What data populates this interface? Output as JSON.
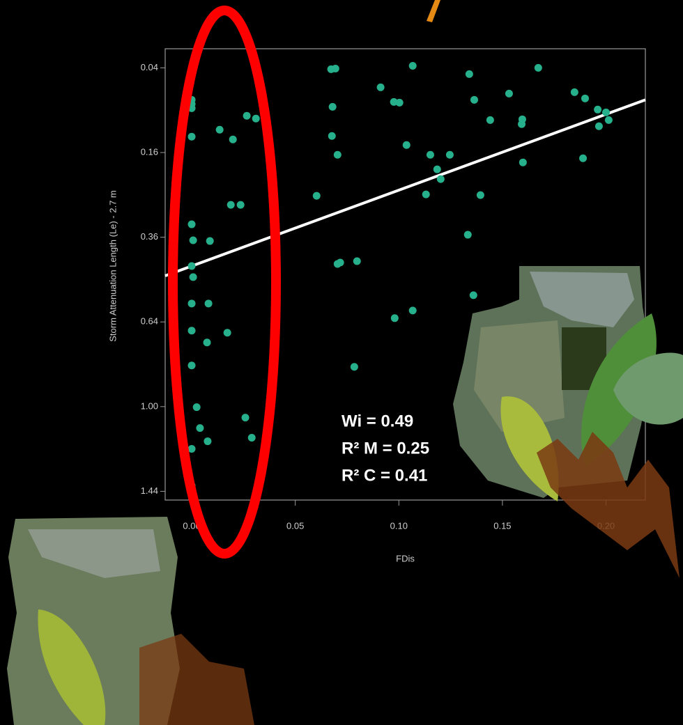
{
  "chart_data": {
    "type": "scatter",
    "x_label": "FDis",
    "y_label": "Storm Attenuation Length (Le) - 2.7 m",
    "annotations": [
      "Wi = 0.49",
      "R² M = 0.25",
      "R² C = 0.41"
    ],
    "xlim": [
      -0.0128,
      0.219
    ],
    "ylim": [
      0.024,
      1.49
    ],
    "y_scale": "sqrt",
    "y_reversed": true,
    "xticks": [
      {
        "value": 0,
        "label": "0.00"
      },
      0.05,
      {
        "value": 0.1,
        "label": "0.10"
      },
      0.15,
      {
        "value": 0.2,
        "label": "0.20"
      }
    ],
    "yticks": [
      0.04,
      0.16,
      0.36,
      0.64,
      {
        "value": 1,
        "label": "1.00"
      },
      1.44
    ],
    "color": "#26b08c",
    "trend_line": {
      "color": "#ffffff",
      "x": [
        -0.0128,
        0.219
      ],
      "y": [
        0.4775,
        0.0759
      ]
    },
    "x": [
      0,
      0,
      0,
      0,
      0.0135,
      0.0199,
      0.0266,
      0.031,
      0.0189,
      0.0236,
      0,
      0.0007,
      0.0088,
      0,
      0.0007,
      0,
      0.0081,
      0,
      0.0074,
      0.0172,
      0,
      0.0024,
      0.004,
      0.0077,
      0,
      0.0259,
      0.029,
      0,
      0.0673,
      0.0694,
      0.068,
      0.0677,
      0.0704,
      0.0603,
      0.0704,
      0.0717,
      0.0798,
      0.0912,
      0.0976,
      0.1003,
      0.1067,
      0.1037,
      0.1152,
      0.1185,
      0.1202,
      0.1131,
      0.1246,
      0.0785,
      0.098,
      0.1067,
      0.134,
      0.1364,
      0.1394,
      0.1441,
      0.1333,
      0.136,
      0.1532,
      0.1593,
      0.1596,
      0.1599,
      0.1673,
      0.1848,
      0.1899,
      0.196,
      0.2,
      0.1966,
      0.2013,
      0.1889
    ],
    "y": [
      0.0759,
      0.0815,
      0.0872,
      0.1315,
      0.1198,
      0.1362,
      0.0981,
      0.1023,
      0.274,
      0.274,
      0.3243,
      0.3687,
      0.3708,
      0.4462,
      0.4819,
      0.5724,
      0.5724,
      0.6735,
      0.7201,
      0.6816,
      0.815,
      1.0026,
      1.1038,
      1.1703,
      1.2096,
      1.0525,
      1.1524,
      1.4085,
      0.0413,
      0.0407,
      0.0853,
      0.1303,
      0.1643,
      0.2521,
      0.4396,
      0.4353,
      0.431,
      0.0605,
      0.0787,
      0.0796,
      0.0381,
      0.1461,
      0.1643,
      0.1933,
      0.2141,
      0.2488,
      0.1643,
      0.821,
      0.6258,
      0.5977,
      0.0461,
      0.0759,
      0.2505,
      0.1045,
      0.353,
      0.543,
      0.068,
      0.1109,
      0.1034,
      0.1792,
      0.04,
      0.0663,
      0.0741,
      0.0891,
      0.0931,
      0.1142,
      0.1045,
      0.171
    ]
  }
}
